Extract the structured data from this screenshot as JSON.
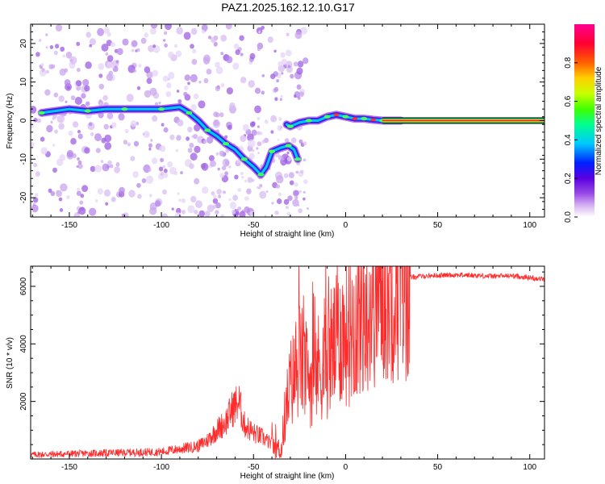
{
  "title": "PAZ1.2025.162.12.10.G17",
  "chart_data": [
    {
      "type": "heatmap",
      "xlabel": "Height of straight line (km)",
      "ylabel": "Frequency (Hz)",
      "xlim": [
        -171,
        108
      ],
      "ylim": [
        -25,
        25
      ],
      "x_ticks": [
        -150,
        -100,
        -50,
        0,
        50,
        100
      ],
      "y_ticks": [
        -20,
        -10,
        0,
        10,
        20
      ],
      "colorbar": {
        "label": "Normalized spectral amplitude",
        "range": [
          0,
          1
        ],
        "ticks": [
          "0.0",
          "0.2",
          "0.4",
          "0.6",
          "0.8"
        ],
        "colors": [
          "#ffffff",
          "#d6b3f2",
          "#9a4de6",
          "#5b00e0",
          "#0020ff",
          "#00c8ff",
          "#00ff90",
          "#40ff00",
          "#c8ff00",
          "#ffd000",
          "#ff6000",
          "#ff0030",
          "#ff0090"
        ]
      },
      "ridge": [
        {
          "x": -165,
          "f": 2.0
        },
        {
          "x": -150,
          "f": 3.0
        },
        {
          "x": -140,
          "f": 2.5
        },
        {
          "x": -130,
          "f": 3.0
        },
        {
          "x": -120,
          "f": 3.0
        },
        {
          "x": -110,
          "f": 3.0
        },
        {
          "x": -100,
          "f": 3.0
        },
        {
          "x": -90,
          "f": 3.5
        },
        {
          "x": -85,
          "f": 2.0
        },
        {
          "x": -80,
          "f": 0.0
        },
        {
          "x": -75,
          "f": -2.5
        },
        {
          "x": -70,
          "f": -4.0
        },
        {
          "x": -65,
          "f": -6.0
        },
        {
          "x": -60,
          "f": -7.5
        },
        {
          "x": -55,
          "f": -10.0
        },
        {
          "x": -50,
          "f": -12.0
        },
        {
          "x": -46,
          "f": -14.0
        },
        {
          "x": -43,
          "f": -12.0
        },
        {
          "x": -40,
          "f": -8.0
        },
        {
          "x": -35,
          "f": -7.0
        },
        {
          "x": -31,
          "f": -6.5
        },
        {
          "x": -28,
          "f": -7.5
        },
        {
          "x": -26,
          "f": -10.0
        },
        {
          "x": -32,
          "f": -1.0
        },
        {
          "x": -30,
          "f": -1.5
        },
        {
          "x": -25,
          "f": -0.5
        },
        {
          "x": -20,
          "f": 0.0
        },
        {
          "x": -15,
          "f": 0.0
        },
        {
          "x": -10,
          "f": 1.0
        },
        {
          "x": -5,
          "f": 1.5
        },
        {
          "x": 0,
          "f": 1.0
        },
        {
          "x": 5,
          "f": 0.5
        },
        {
          "x": 10,
          "f": 0.5
        },
        {
          "x": 15,
          "f": 0.2
        },
        {
          "x": 20,
          "f": 0.0
        },
        {
          "x": 30,
          "f": 0.0
        }
      ],
      "tone_line": {
        "x_start": 20,
        "x_end": 108,
        "f": 0.0
      }
    },
    {
      "type": "line",
      "xlabel": "Height of straight line (km)",
      "ylabel": "SNR (10 * v/v)",
      "xlim": [
        -171,
        108
      ],
      "ylim": [
        0,
        6700
      ],
      "x_ticks": [
        -150,
        -100,
        -50,
        0,
        50,
        100
      ],
      "y_ticks": [
        2000,
        4000,
        6000
      ],
      "series": [
        {
          "color": "#ff2a2a",
          "x": [
            -171,
            -150,
            -120,
            -100,
            -90,
            -80,
            -75,
            -70,
            -65,
            -62,
            -58,
            -55,
            -50,
            -45,
            -40,
            -35,
            -33,
            -30,
            -27,
            -25,
            -22,
            -20,
            -17,
            -15,
            -12,
            -10,
            -8,
            -5,
            -3,
            0,
            5,
            10,
            15,
            20,
            25,
            30,
            35,
            40,
            50,
            60,
            70,
            80,
            90,
            100,
            108
          ],
          "values": [
            150,
            180,
            220,
            250,
            350,
            450,
            650,
            1000,
            1300,
            1700,
            2000,
            1200,
            900,
            750,
            500,
            300,
            1500,
            2600,
            3000,
            3500,
            3100,
            2800,
            2900,
            3200,
            3300,
            3400,
            3800,
            4000,
            4400,
            4300,
            4700,
            5200,
            5600,
            5900,
            6100,
            6200,
            6300,
            6350,
            6380,
            6400,
            6380,
            6350,
            6370,
            6300,
            6250
          ]
        }
      ]
    }
  ]
}
